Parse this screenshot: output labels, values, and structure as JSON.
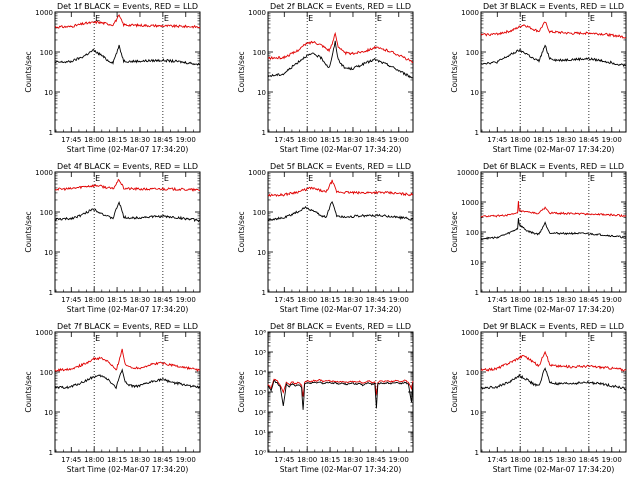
{
  "colors": {
    "events": "#000000",
    "lld": "#e00000",
    "axis": "#000000",
    "background": "#ffffff"
  },
  "common": {
    "ylabel": "Counts/sec",
    "xlabel": "Start Time (02-Mar-07 17:34:20)",
    "x_ticks": [
      "17:45",
      "18:00",
      "18:15",
      "18:30",
      "18:45",
      "19:00"
    ],
    "x_tick_minutes": [
      10.67,
      25.67,
      40.67,
      55.67,
      70.67,
      85.67
    ],
    "xlim_minutes": [
      0,
      95
    ],
    "dotted_lines_minutes": [
      25.67,
      70.67
    ],
    "marker_text": "E"
  },
  "chart_data": [
    {
      "type": "line",
      "title": "Det 1f BLACK = Events, RED = LLD",
      "yscale": "log",
      "ylim": [
        1,
        1000
      ],
      "y_ticks": [
        "1",
        "10",
        "100",
        "1000"
      ],
      "series": [
        {
          "key": "lld",
          "x": [
            0,
            10,
            20,
            28,
            35,
            38,
            42,
            45,
            50,
            60,
            70,
            80,
            90,
            95
          ],
          "y": [
            420,
            430,
            520,
            560,
            500,
            480,
            800,
            480,
            470,
            460,
            450,
            440,
            430,
            420
          ]
        },
        {
          "key": "events",
          "x": [
            0,
            10,
            18,
            25,
            30,
            35,
            38,
            42,
            45,
            50,
            60,
            70,
            80,
            90,
            95
          ],
          "y": [
            55,
            57,
            75,
            110,
            85,
            60,
            55,
            140,
            60,
            58,
            60,
            62,
            58,
            52,
            48
          ]
        }
      ]
    },
    {
      "type": "line",
      "title": "Det 2f BLACK = Events, RED = LLD",
      "yscale": "log",
      "ylim": [
        1,
        1000
      ],
      "y_ticks": [
        "1",
        "10",
        "100",
        "1000"
      ],
      "series": [
        {
          "key": "lld",
          "x": [
            0,
            10,
            18,
            25,
            30,
            35,
            40,
            42,
            44,
            46,
            50,
            55,
            65,
            70,
            80,
            90,
            95
          ],
          "y": [
            70,
            72,
            100,
            160,
            180,
            150,
            110,
            150,
            300,
            140,
            95,
            90,
            110,
            130,
            105,
            70,
            55
          ]
        },
        {
          "key": "events",
          "x": [
            0,
            10,
            18,
            25,
            30,
            35,
            40,
            42,
            44,
            46,
            50,
            55,
            65,
            70,
            80,
            90,
            95
          ],
          "y": [
            25,
            28,
            50,
            80,
            90,
            70,
            40,
            75,
            180,
            65,
            40,
            38,
            55,
            65,
            45,
            28,
            22
          ]
        }
      ]
    },
    {
      "type": "line",
      "title": "Det 3f BLACK = Events, RED = LLD",
      "yscale": "log",
      "ylim": [
        1,
        1000
      ],
      "y_ticks": [
        "1",
        "10",
        "100",
        "1000"
      ],
      "series": [
        {
          "key": "lld",
          "x": [
            0,
            10,
            20,
            28,
            35,
            38,
            42,
            45,
            50,
            60,
            70,
            80,
            90,
            95
          ],
          "y": [
            270,
            280,
            340,
            480,
            360,
            330,
            560,
            320,
            310,
            290,
            300,
            280,
            250,
            230
          ]
        },
        {
          "key": "events",
          "x": [
            0,
            10,
            18,
            25,
            30,
            35,
            38,
            42,
            45,
            50,
            60,
            70,
            80,
            90,
            95
          ],
          "y": [
            52,
            55,
            80,
            110,
            90,
            65,
            60,
            145,
            70,
            62,
            65,
            68,
            60,
            50,
            45
          ]
        }
      ]
    },
    {
      "type": "line",
      "title": "Det 4f BLACK = Events, RED = LLD",
      "yscale": "log",
      "ylim": [
        1,
        1000
      ],
      "y_ticks": [
        "1",
        "10",
        "100",
        "1000"
      ],
      "series": [
        {
          "key": "lld",
          "x": [
            0,
            10,
            20,
            28,
            35,
            38,
            42,
            45,
            50,
            60,
            70,
            80,
            90,
            95
          ],
          "y": [
            370,
            380,
            440,
            460,
            400,
            380,
            650,
            390,
            380,
            370,
            380,
            370,
            360,
            350
          ]
        },
        {
          "key": "events",
          "x": [
            0,
            10,
            18,
            25,
            30,
            35,
            38,
            42,
            45,
            50,
            60,
            70,
            80,
            90,
            95
          ],
          "y": [
            65,
            68,
            85,
            120,
            95,
            75,
            70,
            180,
            75,
            70,
            75,
            78,
            72,
            65,
            60
          ]
        }
      ]
    },
    {
      "type": "line",
      "title": "Det 5f BLACK = Events, RED = LLD",
      "yscale": "log",
      "ylim": [
        1,
        1000
      ],
      "y_ticks": [
        "1",
        "10",
        "100",
        "1000"
      ],
      "series": [
        {
          "key": "lld",
          "x": [
            0,
            10,
            20,
            28,
            35,
            38,
            42,
            45,
            50,
            60,
            70,
            80,
            90,
            95
          ],
          "y": [
            260,
            270,
            320,
            400,
            340,
            310,
            600,
            320,
            310,
            300,
            310,
            300,
            280,
            270
          ]
        },
        {
          "key": "events",
          "x": [
            0,
            10,
            18,
            25,
            30,
            35,
            38,
            42,
            45,
            50,
            60,
            70,
            80,
            90,
            95
          ],
          "y": [
            65,
            70,
            95,
            130,
            105,
            80,
            75,
            190,
            80,
            75,
            80,
            82,
            78,
            70,
            65
          ]
        }
      ]
    },
    {
      "type": "line",
      "title": "Det 6f BLACK = Events, RED = LLD",
      "yscale": "log",
      "ylim": [
        1,
        10000
      ],
      "y_ticks": [
        "1",
        "10",
        "100",
        "1000",
        "10000"
      ],
      "series": [
        {
          "key": "lld",
          "x": [
            0,
            10,
            20,
            24,
            24.5,
            25,
            28,
            35,
            38,
            42,
            45,
            50,
            60,
            70,
            80,
            90,
            95
          ],
          "y": [
            330,
            340,
            380,
            420,
            1100,
            520,
            470,
            430,
            420,
            650,
            430,
            420,
            410,
            400,
            380,
            360,
            340
          ]
        },
        {
          "key": "events",
          "x": [
            0,
            10,
            18,
            24,
            24.5,
            25,
            30,
            35,
            38,
            42,
            45,
            50,
            60,
            70,
            80,
            90,
            95
          ],
          "y": [
            60,
            65,
            90,
            130,
            300,
            180,
            110,
            90,
            85,
            200,
            95,
            90,
            90,
            88,
            80,
            70,
            65
          ]
        }
      ]
    },
    {
      "type": "line",
      "title": "Det 7f BLACK = Events, RED = LLD",
      "yscale": "log",
      "ylim": [
        1,
        1000
      ],
      "y_ticks": [
        "1",
        "10",
        "100",
        "1000"
      ],
      "series": [
        {
          "key": "lld",
          "x": [
            0,
            10,
            18,
            25,
            30,
            35,
            40,
            42,
            44,
            46,
            50,
            55,
            65,
            70,
            80,
            90,
            95
          ],
          "y": [
            110,
            120,
            150,
            210,
            220,
            180,
            110,
            190,
            380,
            150,
            130,
            125,
            160,
            170,
            140,
            120,
            110
          ]
        },
        {
          "key": "events",
          "x": [
            0,
            10,
            18,
            25,
            30,
            35,
            40,
            42,
            44,
            46,
            50,
            55,
            65,
            70,
            80,
            90,
            95
          ],
          "y": [
            40,
            42,
            55,
            75,
            80,
            65,
            40,
            70,
            120,
            55,
            45,
            44,
            60,
            65,
            52,
            44,
            40
          ]
        }
      ]
    },
    {
      "type": "line",
      "title": "Det 8f BLACK = Events, RED = LLD",
      "yscale": "log",
      "ylim": [
        1,
        1000000
      ],
      "y_ticks": [
        "10⁰",
        "10¹",
        "10²",
        "10³",
        "10⁴",
        "10⁵",
        "10⁶"
      ],
      "series": [
        {
          "key": "lld",
          "x": [
            0,
            2,
            4,
            6,
            8,
            10,
            12,
            14,
            16,
            18,
            20,
            22,
            23,
            24,
            26,
            28,
            30,
            32,
            34,
            36,
            38,
            40,
            42,
            44,
            46,
            48,
            50,
            52,
            54,
            56,
            58,
            60,
            62,
            64,
            66,
            68,
            70,
            71,
            72,
            74,
            76,
            78,
            80,
            82,
            84,
            86,
            88,
            90,
            92,
            94,
            95
          ],
          "y": [
            2500,
            1500,
            4500,
            3500,
            2200,
            1000,
            3000,
            2400,
            3200,
            2600,
            3000,
            2200,
            600,
            3000,
            3800,
            3200,
            3900,
            3400,
            4100,
            3300,
            3600,
            3700,
            3400,
            3500,
            3100,
            3400,
            3200,
            3000,
            3500,
            3300,
            3100,
            3400,
            2800,
            3200,
            3600,
            3000,
            3400,
            700,
            3100,
            3500,
            3300,
            3700,
            3200,
            3500,
            3900,
            3300,
            3500,
            3800,
            3100,
            1500,
            3600
          ]
        },
        {
          "key": "events",
          "x": [
            0,
            2,
            4,
            6,
            8,
            10,
            12,
            14,
            16,
            18,
            20,
            22,
            23,
            24,
            26,
            28,
            30,
            32,
            34,
            36,
            38,
            40,
            42,
            44,
            46,
            48,
            50,
            52,
            54,
            56,
            58,
            60,
            62,
            64,
            66,
            68,
            70,
            71,
            72,
            74,
            76,
            78,
            80,
            82,
            84,
            86,
            88,
            90,
            92,
            94,
            95
          ],
          "y": [
            2000,
            1200,
            3600,
            2800,
            1800,
            200,
            2400,
            1900,
            2600,
            2100,
            2400,
            1800,
            120,
            2400,
            3000,
            2600,
            3100,
            2700,
            3300,
            2600,
            2900,
            3000,
            2700,
            2800,
            2500,
            2700,
            2600,
            2400,
            2800,
            2600,
            2500,
            2700,
            2200,
            2600,
            2900,
            2400,
            2700,
            150,
            2500,
            2800,
            2600,
            3000,
            2600,
            2800,
            3100,
            2600,
            2800,
            3000,
            2500,
            300,
            2900
          ]
        }
      ]
    },
    {
      "type": "line",
      "title": "Det 9f BLACK = Events, RED = LLD",
      "yscale": "log",
      "ylim": [
        1,
        1000
      ],
      "y_ticks": [
        "1",
        "10",
        "100",
        "1000"
      ],
      "series": [
        {
          "key": "lld",
          "x": [
            0,
            10,
            20,
            28,
            35,
            38,
            42,
            45,
            50,
            60,
            70,
            80,
            90,
            95
          ],
          "y": [
            110,
            120,
            180,
            260,
            170,
            140,
            340,
            150,
            140,
            135,
            140,
            130,
            120,
            110
          ]
        },
        {
          "key": "events",
          "x": [
            0,
            10,
            18,
            25,
            30,
            35,
            38,
            42,
            45,
            50,
            60,
            70,
            80,
            90,
            95
          ],
          "y": [
            40,
            42,
            55,
            80,
            65,
            48,
            45,
            130,
            55,
            50,
            52,
            55,
            50,
            42,
            38
          ]
        }
      ]
    }
  ]
}
